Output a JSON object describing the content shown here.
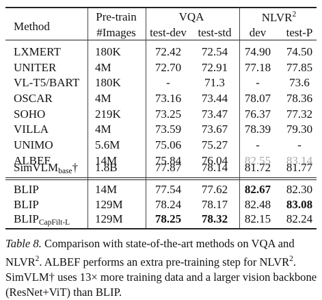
{
  "table": {
    "header": {
      "method": "Method",
      "pretrain_line1": "Pre-train",
      "pretrain_line2": "#Images",
      "vqa": "VQA",
      "vqa_dev": "test-dev",
      "vqa_std": "test-std",
      "nlvr": "NLVR",
      "nlvr_sup": "2",
      "nlvr_dev": "dev",
      "nlvr_testp": "test-P"
    },
    "rows": [
      {
        "method": "LXMERT",
        "images": "180K",
        "vqa_dev": "72.42",
        "vqa_std": "72.54",
        "nlvr_dev": "74.90",
        "nlvr_testp": "74.50"
      },
      {
        "method": "UNITER",
        "images": "4M",
        "vqa_dev": "72.70",
        "vqa_std": "72.91",
        "nlvr_dev": "77.18",
        "nlvr_testp": "77.85"
      },
      {
        "method": "VL-T5/BART",
        "images": "180K",
        "vqa_dev": "-",
        "vqa_std": "71.3",
        "nlvr_dev": "-",
        "nlvr_testp": "73.6"
      },
      {
        "method": "OSCAR",
        "images": "4M",
        "vqa_dev": "73.16",
        "vqa_std": "73.44",
        "nlvr_dev": "78.07",
        "nlvr_testp": "78.36"
      },
      {
        "method": "SOHO",
        "images": "219K",
        "vqa_dev": "73.25",
        "vqa_std": "73.47",
        "nlvr_dev": "76.37",
        "nlvr_testp": "77.32"
      },
      {
        "method": "VILLA",
        "images": "4M",
        "vqa_dev": "73.59",
        "vqa_std": "73.67",
        "nlvr_dev": "78.39",
        "nlvr_testp": "79.30"
      },
      {
        "method": "UNIMO",
        "images": "5.6M",
        "vqa_dev": "75.06",
        "vqa_std": "75.27",
        "nlvr_dev": "-",
        "nlvr_testp": "-"
      },
      {
        "method": "ALBEF",
        "images": "14M",
        "vqa_dev": "75.84",
        "vqa_std": "76.04",
        "nlvr_dev": "82.55",
        "nlvr_testp": "83.14"
      },
      {
        "method": "SimVLM",
        "method_sub": "base",
        "method_suffix": "†",
        "images": "1.8B",
        "vqa_dev": "77.87",
        "vqa_std": "78.14",
        "nlvr_dev": "81.72",
        "nlvr_testp": "81.77"
      },
      {
        "method": "BLIP",
        "images": "14M",
        "vqa_dev": "77.54",
        "vqa_std": "77.62",
        "nlvr_dev": "82.67",
        "nlvr_testp": "82.30"
      },
      {
        "method": "BLIP",
        "images": "129M",
        "vqa_dev": "78.24",
        "vqa_std": "78.17",
        "nlvr_dev": "82.48",
        "nlvr_testp": "83.08"
      },
      {
        "method": "BLIP",
        "method_sub": "CapFilt-L",
        "images": "129M",
        "vqa_dev": "78.25",
        "vqa_std": "78.32",
        "nlvr_dev": "82.15",
        "nlvr_testp": "82.24"
      }
    ]
  },
  "caption": {
    "label": "Table 8.",
    "text_a": " Comparison with state-of-the-art methods on VQA and NLVR",
    "sup_a": "2",
    "text_b": ". ALBEF performs an extra pre-training step for NLVR",
    "sup_b": "2",
    "text_c": ". SimVLM† uses 13× more training data and a larger vision backbone (ResNet+ViT) than BLIP."
  },
  "colors": {
    "text": "#111111",
    "muted_value": "#a9a9a9",
    "rule": "#222222"
  }
}
